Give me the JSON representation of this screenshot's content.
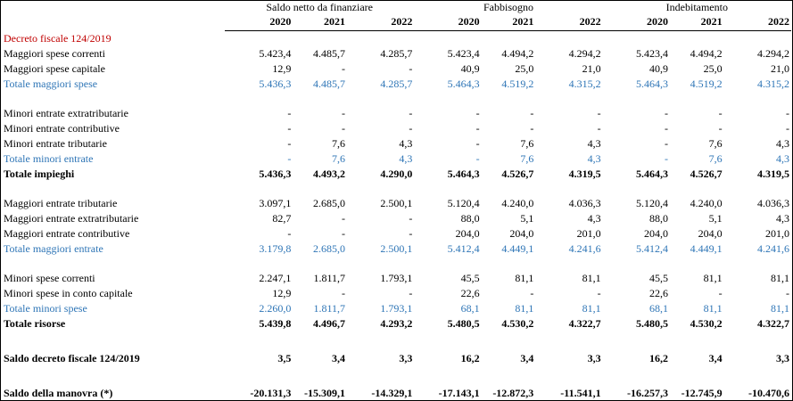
{
  "header": {
    "groups": [
      "Saldo netto da finanziare",
      "Fabbisogno",
      "Indebitamento"
    ],
    "years": [
      "2020",
      "2021",
      "2022",
      "2020",
      "2021",
      "2022",
      "2020",
      "2021",
      "2022"
    ]
  },
  "section_title": "Decreto fiscale 124/2019",
  "rows": [
    {
      "label": "Maggiori spese correnti",
      "values": [
        "5.423,4",
        "4.485,7",
        "4.285,7",
        "5.423,4",
        "4.494,2",
        "4.294,2",
        "5.423,4",
        "4.494,2",
        "4.294,2"
      ]
    },
    {
      "label": "Maggiori spese capitale",
      "values": [
        "12,9",
        "-",
        "-",
        "40,9",
        "25,0",
        "21,0",
        "40,9",
        "25,0",
        "21,0"
      ]
    },
    {
      "label": "Totale maggiori spese",
      "values": [
        "5.436,3",
        "4.485,7",
        "4.285,7",
        "5.464,3",
        "4.519,2",
        "4.315,2",
        "5.464,3",
        "4.519,2",
        "4.315,2"
      ]
    },
    {
      "label": "Minori entrate extratributarie",
      "values": [
        "-",
        "-",
        "-",
        "-",
        "-",
        "-",
        "-",
        "-",
        "-"
      ]
    },
    {
      "label": "Minori entrate contributive",
      "values": [
        "-",
        "-",
        "-",
        "-",
        "-",
        "-",
        "-",
        "-",
        "-"
      ]
    },
    {
      "label": "Minori entrate tributarie",
      "values": [
        "-",
        "7,6",
        "4,3",
        "-",
        "7,6",
        "4,3",
        "-",
        "7,6",
        "4,3"
      ]
    },
    {
      "label": "Totale minori entrate",
      "values": [
        "-",
        "7,6",
        "4,3",
        "-",
        "7,6",
        "4,3",
        "-",
        "7,6",
        "4,3"
      ]
    },
    {
      "label": "Totale impieghi",
      "values": [
        "5.436,3",
        "4.493,2",
        "4.290,0",
        "5.464,3",
        "4.526,7",
        "4.319,5",
        "5.464,3",
        "4.526,7",
        "4.319,5"
      ]
    },
    {
      "label": "Maggiori entrate tributarie",
      "values": [
        "3.097,1",
        "2.685,0",
        "2.500,1",
        "5.120,4",
        "4.240,0",
        "4.036,3",
        "5.120,4",
        "4.240,0",
        "4.036,3"
      ]
    },
    {
      "label": "Maggiori entrate extratributarie",
      "values": [
        "82,7",
        "-",
        "-",
        "88,0",
        "5,1",
        "4,3",
        "88,0",
        "5,1",
        "4,3"
      ]
    },
    {
      "label": "Maggiori entrate contributive",
      "values": [
        "-",
        "-",
        "-",
        "204,0",
        "204,0",
        "201,0",
        "204,0",
        "204,0",
        "201,0"
      ]
    },
    {
      "label": "Totale maggiori entrate",
      "values": [
        "3.179,8",
        "2.685,0",
        "2.500,1",
        "5.412,4",
        "4.449,1",
        "4.241,6",
        "5.412,4",
        "4.449,1",
        "4.241,6"
      ]
    },
    {
      "label": "Minori spese correnti",
      "values": [
        "2.247,1",
        "1.811,7",
        "1.793,1",
        "45,5",
        "81,1",
        "81,1",
        "45,5",
        "81,1",
        "81,1"
      ]
    },
    {
      "label": "Minori spese in conto capitale",
      "values": [
        "12,9",
        "-",
        "-",
        "22,6",
        "-",
        "-",
        "22,6",
        "-",
        "-"
      ]
    },
    {
      "label": "Totale minori spese",
      "values": [
        "2.260,0",
        "1.811,7",
        "1.793,1",
        "68,1",
        "81,1",
        "81,1",
        "68,1",
        "81,1",
        "81,1"
      ]
    },
    {
      "label": "Totale risorse",
      "values": [
        "5.439,8",
        "4.496,7",
        "4.293,2",
        "5.480,5",
        "4.530,2",
        "4.322,7",
        "5.480,5",
        "4.530,2",
        "4.322,7"
      ]
    },
    {
      "label": "Saldo decreto fiscale 124/2019",
      "values": [
        "3,5",
        "3,4",
        "3,3",
        "16,2",
        "3,4",
        "3,3",
        "16,2",
        "3,4",
        "3,3"
      ]
    },
    {
      "label": "Saldo della manovra (*)",
      "values": [
        "-20.131,3",
        "-15.309,1",
        "-14.329,1",
        "-17.143,1",
        "-12.872,3",
        "-11.541,1",
        "-16.257,3",
        "-12.745,9",
        "-10.470,6"
      ]
    }
  ]
}
